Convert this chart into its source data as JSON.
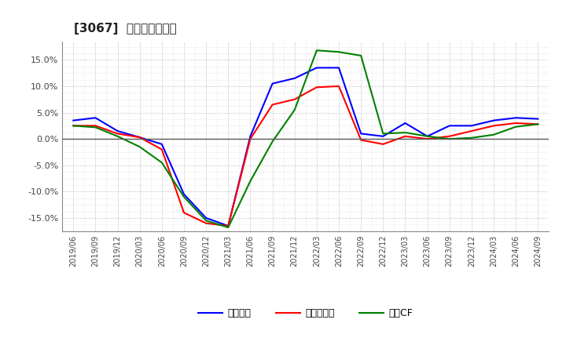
{
  "title": "[3067]  マージンの推移",
  "x_labels": [
    "2019/06",
    "2019/09",
    "2019/12",
    "2020/03",
    "2020/06",
    "2020/09",
    "2020/12",
    "2021/03",
    "2021/06",
    "2021/09",
    "2021/12",
    "2022/03",
    "2022/06",
    "2022/09",
    "2022/12",
    "2023/03",
    "2023/06",
    "2023/09",
    "2023/12",
    "2024/03",
    "2024/06",
    "2024/09"
  ],
  "keijo": [
    3.5,
    4.0,
    1.5,
    0.3,
    -1.0,
    -10.5,
    -15.0,
    -16.5,
    0.5,
    10.5,
    11.5,
    13.5,
    13.5,
    1.0,
    0.5,
    3.0,
    0.5,
    2.5,
    2.5,
    3.5,
    4.0,
    3.8
  ],
  "touki": [
    2.5,
    2.5,
    1.0,
    0.3,
    -2.0,
    -14.0,
    -16.0,
    -16.5,
    0.0,
    6.5,
    7.5,
    9.8,
    10.0,
    -0.2,
    -1.0,
    0.5,
    0.0,
    0.5,
    1.5,
    2.5,
    3.0,
    2.8
  ],
  "eigyo": [
    2.5,
    2.2,
    0.5,
    -1.5,
    -4.5,
    -11.0,
    -15.5,
    -16.8,
    -8.0,
    -0.5,
    5.5,
    16.8,
    16.5,
    15.8,
    1.0,
    1.2,
    0.5,
    0.0,
    0.2,
    0.8,
    2.3,
    2.8
  ],
  "keijo_color": "#0000ff",
  "touki_color": "#ff0000",
  "eigyo_color": "#008000",
  "background_color": "#ffffff",
  "grid_color": "#aaaaaa",
  "ylim": [
    -17.5,
    18.5
  ],
  "yticks": [
    -15.0,
    -10.0,
    -5.0,
    0.0,
    5.0,
    10.0,
    15.0
  ],
  "legend_labels": [
    "経常利益",
    "当期純利益",
    "営業CF"
  ]
}
